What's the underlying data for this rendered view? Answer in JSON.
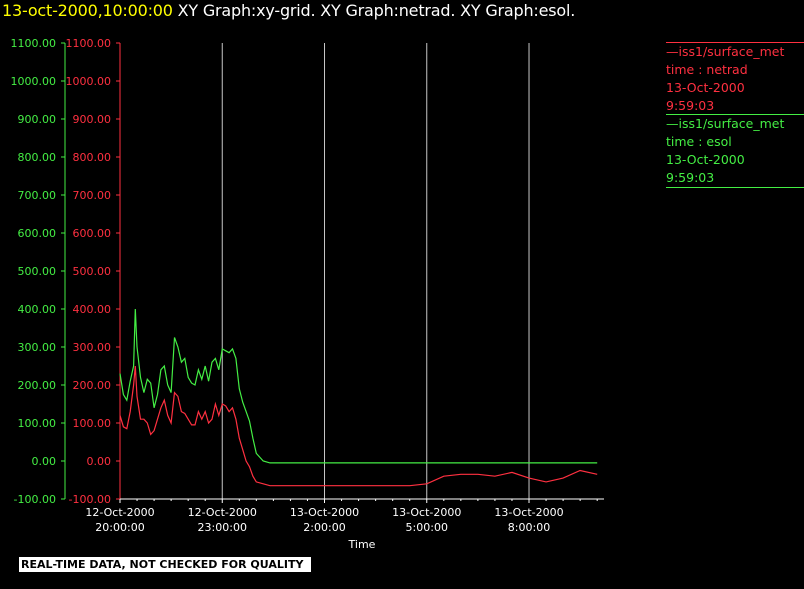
{
  "title": {
    "time": "13-oct-2000,10:00:00",
    "rest": " XY Graph:xy-grid.  XY Graph:netrad.  XY Graph:esol."
  },
  "legend": [
    {
      "line1": "—iss1/surface_met",
      "line2": "time : netrad",
      "line3": "13-Oct-2000",
      "line4": "9:59:03",
      "color": "#ff3040"
    },
    {
      "line1": "—iss1/surface_met",
      "line2": "time : esol",
      "line3": "13-Oct-2000",
      "line4": "9:59:03",
      "color": "#44ee44"
    }
  ],
  "warning": "REAL-TIME DATA, NOT CHECKED FOR QUALITY",
  "chart_data": {
    "type": "line",
    "xlabel": "Time",
    "ylim": [
      -100,
      1100
    ],
    "y_ticks": [
      "1100.00",
      "1000.00",
      "900.00",
      "800.00",
      "700.00",
      "600.00",
      "500.00",
      "400.00",
      "300.00",
      "200.00",
      "100.00",
      "0.00",
      "-100.00"
    ],
    "x_ticks": [
      {
        "line1": "12-Oct-2000",
        "line2": "20:00:00"
      },
      {
        "line1": "12-Oct-2000",
        "line2": "23:00:00"
      },
      {
        "line1": "13-Oct-2000",
        "line2": "2:00:00"
      },
      {
        "line1": "13-Oct-2000",
        "line2": "5:00:00"
      },
      {
        "line1": "13-Oct-2000",
        "line2": "8:00:00"
      }
    ],
    "x_hours_range": [
      20,
      34.2
    ],
    "vertical_grid_hours": [
      23,
      26,
      29,
      32
    ],
    "grid": "vertical",
    "series": [
      {
        "name": "esol",
        "color": "#44ee44",
        "x_hours": [
          20.0,
          20.1,
          20.2,
          20.3,
          20.4,
          20.45,
          20.5,
          20.6,
          20.7,
          20.8,
          20.9,
          21.0,
          21.1,
          21.2,
          21.3,
          21.4,
          21.5,
          21.6,
          21.7,
          21.8,
          21.9,
          22.0,
          22.1,
          22.2,
          22.3,
          22.4,
          22.5,
          22.6,
          22.7,
          22.8,
          22.9,
          23.0,
          23.1,
          23.2,
          23.3,
          23.4,
          23.5,
          23.6,
          23.7,
          23.8,
          23.9,
          24.0,
          24.2,
          24.4,
          24.6,
          24.8,
          25.0,
          25.5,
          26.0,
          27.0,
          28.0,
          29.0,
          30.0,
          31.0,
          32.0,
          33.0,
          34.0
        ],
        "values": [
          230,
          175,
          160,
          210,
          250,
          400,
          300,
          220,
          180,
          215,
          205,
          140,
          175,
          240,
          250,
          200,
          180,
          325,
          300,
          260,
          270,
          220,
          205,
          200,
          240,
          215,
          250,
          210,
          260,
          270,
          240,
          295,
          290,
          285,
          295,
          270,
          190,
          155,
          130,
          105,
          60,
          20,
          0,
          -5,
          -5,
          -5,
          -5,
          -5,
          -5,
          -5,
          -5,
          -5,
          -5,
          -5,
          -5,
          -5,
          -5
        ]
      },
      {
        "name": "netrad",
        "color": "#ff3040",
        "x_hours": [
          20.0,
          20.1,
          20.2,
          20.3,
          20.4,
          20.45,
          20.5,
          20.6,
          20.7,
          20.8,
          20.9,
          21.0,
          21.1,
          21.2,
          21.3,
          21.4,
          21.5,
          21.6,
          21.7,
          21.8,
          21.9,
          22.0,
          22.1,
          22.2,
          22.3,
          22.4,
          22.5,
          22.6,
          22.7,
          22.8,
          22.9,
          23.0,
          23.1,
          23.2,
          23.3,
          23.4,
          23.5,
          23.6,
          23.7,
          23.8,
          23.9,
          24.0,
          24.2,
          24.4,
          24.6,
          24.8,
          25.0,
          25.5,
          26.0,
          27.0,
          28.0,
          28.5,
          29.0,
          29.5,
          30.0,
          30.5,
          31.0,
          31.5,
          32.0,
          32.5,
          33.0,
          33.5,
          34.0
        ],
        "values": [
          120,
          90,
          85,
          130,
          200,
          250,
          170,
          110,
          110,
          100,
          70,
          80,
          110,
          140,
          160,
          120,
          100,
          180,
          170,
          130,
          125,
          110,
          95,
          95,
          130,
          110,
          130,
          100,
          110,
          150,
          120,
          150,
          145,
          130,
          140,
          110,
          60,
          30,
          0,
          -15,
          -40,
          -55,
          -60,
          -65,
          -65,
          -65,
          -65,
          -65,
          -65,
          -65,
          -65,
          -65,
          -60,
          -40,
          -35,
          -35,
          -40,
          -30,
          -45,
          -55,
          -45,
          -25,
          -35
        ]
      }
    ]
  }
}
